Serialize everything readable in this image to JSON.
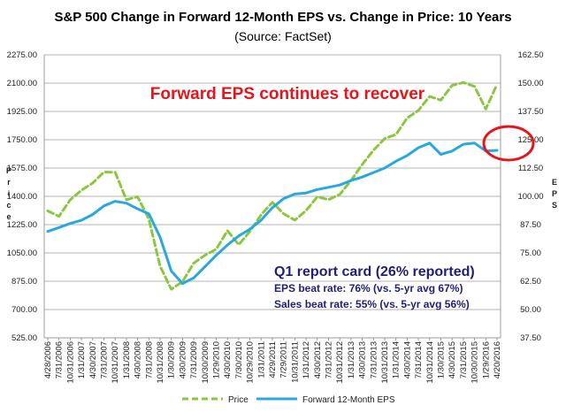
{
  "chart_data": {
    "type": "line",
    "title": "S&P 500 Change in Forward 12-Month EPS vs. Change in Price: 10 Years",
    "subtitle": "(Source: FactSet)",
    "ylabel_left": "Price",
    "ylabel_right": "EPS",
    "ylim_left": [
      525,
      2275
    ],
    "ylim_right": [
      37.5,
      162.5
    ],
    "yticks_left": [
      "2275.00",
      "2100.00",
      "1925.00",
      "1750.00",
      "1575.00",
      "1400.00",
      "1225.00",
      "1050.00",
      "875.00",
      "700.00",
      "525.00"
    ],
    "yticks_right": [
      "162.50",
      "150.00",
      "137.50",
      "125.00",
      "112.50",
      "100.00",
      "87.50",
      "75.00",
      "62.50",
      "50.00",
      "37.50"
    ],
    "x": [
      "4/28/2006",
      "7/31/2006",
      "10/31/2006",
      "1/31/2007",
      "4/30/2007",
      "7/31/2007",
      "10/31/2007",
      "1/31/2008",
      "4/30/2008",
      "7/31/2008",
      "10/31/2008",
      "1/30/2009",
      "4/30/2009",
      "7/31/2009",
      "10/30/2009",
      "1/29/2010",
      "4/30/2010",
      "7/30/2010",
      "10/29/2010",
      "1/31/2011",
      "4/29/2011",
      "7/29/2011",
      "10/31/2011",
      "1/31/2012",
      "4/30/2012",
      "7/31/2012",
      "10/31/2012",
      "1/31/2013",
      "4/30/2013",
      "7/31/2013",
      "10/31/2013",
      "1/31/2014",
      "4/30/2014",
      "7/31/2014",
      "10/31/2014",
      "1/30/2015",
      "4/30/2015",
      "7/31/2015",
      "10/30/2015",
      "1/29/2016",
      "4/20/2016"
    ],
    "grid": "horizontal",
    "legend_position": "bottom",
    "series": [
      {
        "name": "Price",
        "axis": "left",
        "color": "#8cc63f",
        "style": "dashed",
        "values": [
          1310,
          1276,
          1378,
          1438,
          1482,
          1550,
          1549,
          1379,
          1397,
          1260,
          968,
          825,
          873,
          987,
          1036,
          1073,
          1187,
          1101,
          1183,
          1286,
          1363,
          1292,
          1253,
          1312,
          1397,
          1379,
          1412,
          1498,
          1597,
          1685,
          1757,
          1782,
          1884,
          1931,
          2018,
          1995,
          2086,
          2104,
          2079,
          1940,
          2092
        ]
      },
      {
        "name": "Forward 12-Month EPS",
        "axis": "right",
        "color": "#29a8e0",
        "style": "solid",
        "values": [
          84.5,
          86.2,
          88.0,
          89.4,
          92.0,
          95.8,
          97.8,
          97.0,
          94.5,
          92.3,
          82.0,
          67.0,
          61.5,
          64.0,
          69.0,
          74.0,
          78.5,
          82.5,
          85.5,
          89.5,
          95.0,
          99.0,
          101.0,
          101.5,
          103.0,
          104.0,
          105.0,
          107.0,
          108.5,
          110.5,
          112.5,
          115.5,
          118.0,
          121.5,
          123.5,
          118.5,
          120.0,
          123.0,
          123.5,
          120.0,
          120.3
        ]
      }
    ],
    "annotations": [
      {
        "text": "Forward EPS continues to recover",
        "color": "#e8141c"
      }
    ]
  },
  "report_card": {
    "title": "Q1 report card (26% reported)",
    "line1": "EPS beat rate: 76% (vs. 5-yr avg 67%)",
    "line2": "Sales beat rate: 55% (vs. 5-yr avg 56%)"
  },
  "legend": {
    "price_label": "Price",
    "eps_label": "Forward 12-Month EPS"
  },
  "colors": {
    "price": "#8cc63f",
    "eps": "#29a8e0",
    "highlight": "#e8141c",
    "report_text": "#1f1f7a",
    "grid": "#9a9a9a"
  }
}
